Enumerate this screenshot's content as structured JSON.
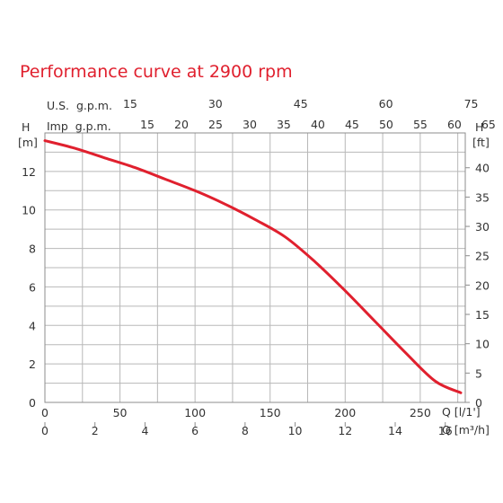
{
  "chart_data": {
    "type": "line",
    "title": "Performance curve at 2900 rpm",
    "colors": {
      "curve": "#e0202e",
      "title": "#e0202e"
    },
    "grid": true,
    "y_left": {
      "name": "H",
      "unit": "[m]",
      "ticks": [
        0,
        2,
        4,
        6,
        8,
        10,
        12
      ],
      "range": [
        0,
        14
      ]
    },
    "y_right": {
      "name": "H",
      "unit": "[ft]",
      "ticks": [
        0,
        5,
        10,
        15,
        20,
        25,
        30,
        35,
        40
      ],
      "range_m": [
        0,
        14
      ],
      "ft_per_m": 3.2808
    },
    "x_bottom_lmin": {
      "label": "Q [l/1']",
      "ticks": [
        0,
        50,
        100,
        150,
        200,
        250
      ],
      "range": [
        0,
        280
      ]
    },
    "x_bottom_m3h": {
      "label": "Q [m³/h]",
      "ticks": [
        0,
        2,
        4,
        6,
        8,
        10,
        12,
        14,
        16
      ],
      "lmin_per_m3h": 16.667
    },
    "x_top_us_gpm": {
      "label": "U.S.  g.p.m.",
      "ticks": [
        15,
        30,
        45,
        60,
        75
      ],
      "lmin_per_unit": 3.7854
    },
    "x_top_imp_gpm": {
      "label": "Imp  g.p.m.",
      "ticks": [
        15,
        20,
        25,
        30,
        35,
        40,
        45,
        50,
        55,
        60,
        65
      ],
      "lmin_per_unit": 4.5461
    },
    "series": [
      {
        "x_lmin": [
          0,
          20,
          40,
          60,
          80,
          100,
          120,
          140,
          160,
          180,
          200,
          220,
          240,
          260,
          277
        ],
        "h_m": [
          13.6,
          13.2,
          12.7,
          12.2,
          11.6,
          11.0,
          10.3,
          9.5,
          8.6,
          7.3,
          5.8,
          4.2,
          2.6,
          1.1,
          0.5
        ]
      }
    ]
  }
}
